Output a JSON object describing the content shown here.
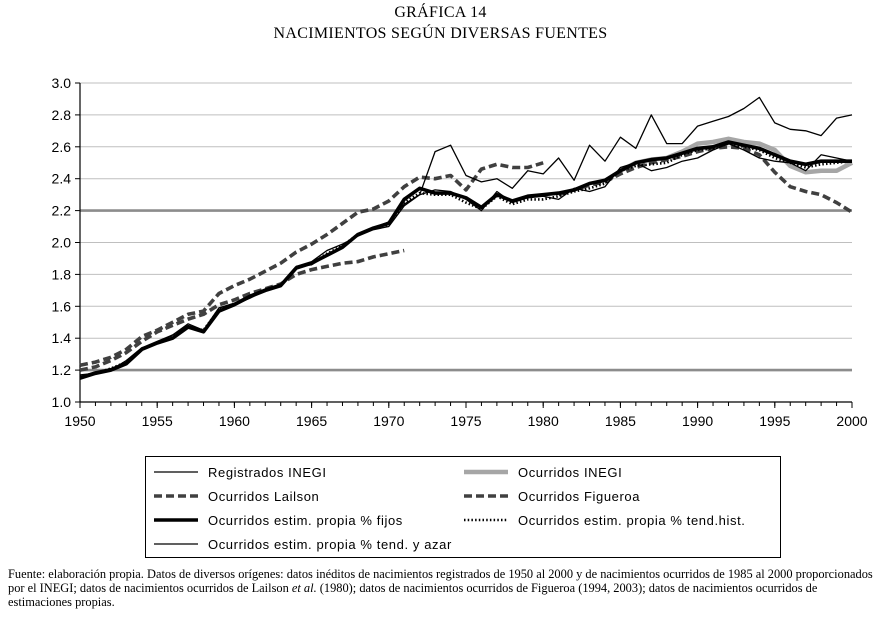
{
  "title": "GRÁFICA 14",
  "subtitle": "NACIMIENTOS SEGÚN DIVERSAS FUENTES",
  "footnote": {
    "part1": "Fuente: elaboración propia. Datos de diversos orígenes: datos inéditos de nacimientos registrados de 1950 al 2000 y de nacimientos ocurridos de 1985 al 2000 proporcionados por el INEGI; datos de nacimientos ocurridos de Lailson ",
    "etal": "et al.",
    "part2": " (1980); datos de nacimientos ocurridos de Figueroa (1994, 2003); datos de nacimientos ocurridos de estimaciones propias."
  },
  "chart_data": {
    "type": "line",
    "title": "NACIMIENTOS SEGÚN DIVERSAS FUENTES",
    "xlabel": "",
    "ylabel": "",
    "xlim": [
      1950,
      2000
    ],
    "ylim": [
      1.0,
      3.0
    ],
    "xticks": [
      "1950",
      "1955",
      "1960",
      "1965",
      "1970",
      "1975",
      "1980",
      "1985",
      "1990",
      "1995",
      "2000"
    ],
    "yticks": [
      "1.0",
      "1.2",
      "1.4",
      "1.6",
      "1.8",
      "2.0",
      "2.2",
      "2.4",
      "2.6",
      "2.8",
      "3.0"
    ],
    "grid": "horizontal",
    "legend_position": "bottom",
    "series": [
      {
        "name": "Registrados INEGI",
        "color": "#000000",
        "style": "thin",
        "x": [
          1950,
          1951,
          1952,
          1953,
          1954,
          1955,
          1956,
          1957,
          1958,
          1959,
          1960,
          1961,
          1962,
          1963,
          1964,
          1965,
          1966,
          1967,
          1968,
          1969,
          1970,
          1971,
          1972,
          1973,
          1974,
          1975,
          1976,
          1977,
          1978,
          1979,
          1980,
          1981,
          1982,
          1983,
          1984,
          1985,
          1986,
          1987,
          1988,
          1989,
          1990,
          1991,
          1992,
          1993,
          1994,
          1995,
          1996,
          1997,
          1998,
          1999,
          2000
        ],
        "y": [
          1.17,
          1.18,
          1.2,
          1.26,
          1.34,
          1.37,
          1.42,
          1.48,
          1.45,
          1.59,
          1.61,
          1.65,
          1.7,
          1.74,
          1.85,
          1.86,
          1.92,
          1.98,
          2.05,
          2.09,
          2.13,
          2.24,
          2.3,
          2.57,
          2.61,
          2.42,
          2.38,
          2.4,
          2.34,
          2.45,
          2.43,
          2.53,
          2.39,
          2.61,
          2.51,
          2.66,
          2.59,
          2.8,
          2.62,
          2.62,
          2.73,
          2.76,
          2.79,
          2.84,
          2.91,
          2.75,
          2.71,
          2.7,
          2.67,
          2.78,
          2.8
        ]
      },
      {
        "name": "Ocurridos INEGI",
        "color": "#a6a6a6",
        "style": "thick",
        "x": [
          1985,
          1986,
          1987,
          1988,
          1989,
          1990,
          1991,
          1992,
          1993,
          1994,
          1995,
          1996,
          1997,
          1998,
          1999,
          2000
        ],
        "y": [
          2.45,
          2.5,
          2.52,
          2.53,
          2.57,
          2.62,
          2.63,
          2.65,
          2.63,
          2.62,
          2.58,
          2.48,
          2.44,
          2.45,
          2.45,
          2.5
        ]
      },
      {
        "name": "Ocurridos Lailson",
        "color": "#404040",
        "style": "dashed",
        "x": [
          1950,
          1951,
          1952,
          1953,
          1954,
          1955,
          1956,
          1957,
          1958,
          1959,
          1960,
          1961,
          1962,
          1963,
          1964,
          1965,
          1966,
          1967,
          1968,
          1969,
          1970,
          1971,
          1972,
          1973,
          1974,
          1975,
          1976,
          1977,
          1978,
          1979,
          1980
        ],
        "y": [
          1.23,
          1.25,
          1.28,
          1.33,
          1.41,
          1.45,
          1.5,
          1.55,
          1.57,
          1.68,
          1.73,
          1.77,
          1.82,
          1.87,
          1.94,
          1.99,
          2.05,
          2.12,
          2.19,
          2.21,
          2.26,
          2.35,
          2.41,
          2.4,
          2.42,
          2.33,
          2.46,
          2.49,
          2.47,
          2.47,
          2.5
        ]
      },
      {
        "name": "Ocurridos Figueroa",
        "color": "#404040",
        "style": "dashed",
        "x": [
          1950,
          1951,
          1952,
          1953,
          1954,
          1955,
          1956,
          1957,
          1958,
          1959,
          1960,
          1961,
          1962,
          1963,
          1964,
          1965,
          1966,
          1967,
          1968,
          1969,
          1970,
          1971,
          1972,
          1973,
          1974,
          1975,
          1976,
          1977,
          1978,
          1979,
          1980,
          1981,
          1982,
          1983,
          1984,
          1985,
          1986,
          1987,
          1988,
          1989,
          1990,
          1991,
          1992,
          1993,
          1994,
          1995,
          1996,
          1997,
          1998,
          1999,
          2000
        ],
        "y": [
          1.2,
          1.22,
          1.26,
          1.31,
          1.38,
          1.44,
          1.48,
          1.52,
          1.55,
          1.61,
          1.64,
          1.68,
          1.71,
          1.74,
          1.8,
          1.83,
          1.85,
          1.87,
          1.88,
          1.91,
          1.93,
          1.95,
          null,
          null,
          null,
          null,
          null,
          null,
          null,
          null,
          null,
          2.3,
          2.33,
          2.36,
          2.38,
          2.43,
          2.47,
          2.5,
          2.52,
          2.54,
          2.57,
          2.59,
          2.6,
          2.59,
          2.55,
          2.44,
          2.35,
          2.32,
          2.3,
          2.25,
          2.19
        ]
      },
      {
        "name": "Ocurridos estim. propia % fijos",
        "color": "#000000",
        "style": "bold",
        "x": [
          1950,
          1951,
          1952,
          1953,
          1954,
          1955,
          1956,
          1957,
          1958,
          1959,
          1960,
          1961,
          1962,
          1963,
          1964,
          1965,
          1966,
          1967,
          1968,
          1969,
          1970,
          1971,
          1972,
          1973,
          1974,
          1975,
          1976,
          1977,
          1978,
          1979,
          1980,
          1981,
          1982,
          1983,
          1984,
          1985,
          1986,
          1987,
          1988,
          1989,
          1990,
          1991,
          1992,
          1993,
          1994,
          1995,
          1996,
          1997,
          1998,
          1999,
          2000
        ],
        "y": [
          1.15,
          1.18,
          1.2,
          1.24,
          1.33,
          1.37,
          1.4,
          1.47,
          1.44,
          1.57,
          1.61,
          1.66,
          1.7,
          1.73,
          1.84,
          1.87,
          1.92,
          1.97,
          2.05,
          2.09,
          2.12,
          2.27,
          2.34,
          2.31,
          2.31,
          2.28,
          2.22,
          2.3,
          2.26,
          2.29,
          2.3,
          2.31,
          2.33,
          2.37,
          2.39,
          2.45,
          2.5,
          2.52,
          2.53,
          2.56,
          2.59,
          2.6,
          2.63,
          2.61,
          2.59,
          2.55,
          2.51,
          2.49,
          2.51,
          2.51,
          2.51
        ]
      },
      {
        "name": "Ocurridos estim. propia % tend.hist.",
        "color": "#000000",
        "style": "dotted",
        "x": [
          1950,
          1951,
          1952,
          1953,
          1954,
          1955,
          1956,
          1957,
          1958,
          1959,
          1960,
          1961,
          1962,
          1963,
          1964,
          1965,
          1966,
          1967,
          1968,
          1969,
          1970,
          1971,
          1972,
          1973,
          1974,
          1975,
          1976,
          1977,
          1978,
          1979,
          1980,
          1981,
          1982,
          1983,
          1984,
          1985,
          1986,
          1987,
          1988,
          1989,
          1990,
          1991,
          1992,
          1993,
          1994,
          1995,
          1996,
          1997,
          1998,
          1999,
          2000
        ],
        "y": [
          1.16,
          1.18,
          1.21,
          1.25,
          1.33,
          1.37,
          1.41,
          1.47,
          1.45,
          1.58,
          1.61,
          1.66,
          1.7,
          1.73,
          1.84,
          1.87,
          1.93,
          1.98,
          2.05,
          2.09,
          2.11,
          2.25,
          2.31,
          2.3,
          2.3,
          2.25,
          2.21,
          2.29,
          2.24,
          2.27,
          2.27,
          2.29,
          2.32,
          2.34,
          2.37,
          2.45,
          2.48,
          2.49,
          2.5,
          2.55,
          2.58,
          2.59,
          2.62,
          2.6,
          2.58,
          2.53,
          2.5,
          2.47,
          2.49,
          2.5,
          2.51
        ]
      },
      {
        "name": "Ocurridos estim. propia % tend. y azar",
        "color": "#000000",
        "style": "thin",
        "x": [
          1950,
          1951,
          1952,
          1953,
          1954,
          1955,
          1956,
          1957,
          1958,
          1959,
          1960,
          1961,
          1962,
          1963,
          1964,
          1965,
          1966,
          1967,
          1968,
          1969,
          1970,
          1971,
          1972,
          1973,
          1974,
          1975,
          1976,
          1977,
          1978,
          1979,
          1980,
          1981,
          1982,
          1983,
          1984,
          1985,
          1986,
          1987,
          1988,
          1989,
          1990,
          1991,
          1992,
          1993,
          1994,
          1995,
          1996,
          1997,
          1998,
          1999,
          2000
        ],
        "y": [
          1.16,
          1.19,
          1.21,
          1.25,
          1.34,
          1.38,
          1.42,
          1.49,
          1.45,
          1.59,
          1.62,
          1.67,
          1.71,
          1.74,
          1.85,
          1.88,
          1.95,
          1.99,
          2.04,
          2.08,
          2.1,
          2.23,
          2.3,
          2.33,
          2.32,
          2.27,
          2.2,
          2.32,
          2.25,
          2.28,
          2.29,
          2.27,
          2.34,
          2.32,
          2.35,
          2.47,
          2.5,
          2.45,
          2.47,
          2.51,
          2.53,
          2.58,
          2.62,
          2.58,
          2.53,
          2.51,
          2.5,
          2.45,
          2.55,
          2.53,
          2.51
        ]
      }
    ]
  }
}
